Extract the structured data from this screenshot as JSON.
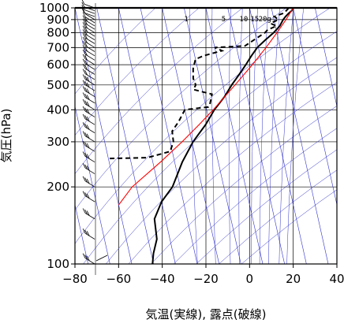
{
  "chart_data": {
    "type": "line",
    "subtype": "skew-t log-p sounding",
    "xlabel": "気温(実線), 露点(破線)",
    "ylabel": "気圧(hPa)",
    "xlim": [
      -80,
      40
    ],
    "ylim": [
      1000,
      100
    ],
    "y_scale": "log",
    "x_ticks": [
      {
        "value": -80,
        "label": "−80"
      },
      {
        "value": -60,
        "label": "−60"
      },
      {
        "value": -40,
        "label": "−40"
      },
      {
        "value": -20,
        "label": "−20"
      },
      {
        "value": 0,
        "label": "0"
      },
      {
        "value": 20,
        "label": "20"
      },
      {
        "value": 40,
        "label": "40"
      }
    ],
    "y_ticks": [
      {
        "value": 100,
        "label": "100"
      },
      {
        "value": 200,
        "label": "200"
      },
      {
        "value": 300,
        "label": "300"
      },
      {
        "value": 400,
        "label": "400"
      },
      {
        "value": 500,
        "label": "500"
      },
      {
        "value": 600,
        "label": "600"
      },
      {
        "value": 700,
        "label": "700"
      },
      {
        "value": 800,
        "label": "800"
      },
      {
        "value": 900,
        "label": "900"
      },
      {
        "value": 1000,
        "label": "1000"
      }
    ],
    "mixing_ratio_labels": [
      {
        "value": 1,
        "label": "1"
      },
      {
        "value": 5,
        "label": "5"
      },
      {
        "value": 10,
        "label": "10"
      },
      {
        "value": 15,
        "label": "15"
      },
      {
        "value": 20,
        "label": "20g"
      }
    ],
    "colors": {
      "temperature": "#000000",
      "dewpoint": "#000000",
      "parcel": "#ff0000",
      "background_lines": "#3333cc",
      "grid": "#000000"
    },
    "series": [
      {
        "key": "temperature",
        "style": "solid",
        "points": [
          {
            "p": 1000,
            "t": 20.0
          },
          {
            "p": 975,
            "t": 19.0
          },
          {
            "p": 950,
            "t": 17.2
          },
          {
            "p": 925,
            "t": 15.6
          },
          {
            "p": 900,
            "t": 14.2
          },
          {
            "p": 850,
            "t": 12.0
          },
          {
            "p": 800,
            "t": 8.5
          },
          {
            "p": 750,
            "t": 4.0
          },
          {
            "p": 700,
            "t": -0.5
          },
          {
            "p": 650,
            "t": -4.0
          },
          {
            "p": 600,
            "t": -7.5
          },
          {
            "p": 550,
            "t": -11.5
          },
          {
            "p": 500,
            "t": -16.0
          },
          {
            "p": 450,
            "t": -20.5
          },
          {
            "p": 400,
            "t": -26.5
          },
          {
            "p": 350,
            "t": -32.0
          },
          {
            "p": 300,
            "t": -39.5
          },
          {
            "p": 250,
            "t": -46.5
          },
          {
            "p": 200,
            "t": -53.5
          },
          {
            "p": 175,
            "t": -60.0
          },
          {
            "p": 150,
            "t": -65.0
          },
          {
            "p": 125,
            "t": -66.0
          },
          {
            "p": 110,
            "t": -69.0
          },
          {
            "p": 100,
            "t": -70.5
          }
        ]
      },
      {
        "key": "dewpoint",
        "style": "dashed",
        "points": [
          {
            "p": 1000,
            "t": 18.0
          },
          {
            "p": 975,
            "t": 16.5
          },
          {
            "p": 950,
            "t": 14.5
          },
          {
            "p": 925,
            "t": 10.5
          },
          {
            "p": 900,
            "t": 12.0
          },
          {
            "p": 870,
            "t": 8.0
          },
          {
            "p": 850,
            "t": 10.5
          },
          {
            "p": 820,
            "t": 6.0
          },
          {
            "p": 800,
            "t": 4.5
          },
          {
            "p": 760,
            "t": 0.0
          },
          {
            "p": 710,
            "t": -6.0
          },
          {
            "p": 700,
            "t": -20.0
          },
          {
            "p": 680,
            "t": -17.0
          },
          {
            "p": 650,
            "t": -26.0
          },
          {
            "p": 630,
            "t": -30.0
          },
          {
            "p": 580,
            "t": -32.0
          },
          {
            "p": 530,
            "t": -33.0
          },
          {
            "p": 500,
            "t": -32.5
          },
          {
            "p": 480,
            "t": -34.0
          },
          {
            "p": 460,
            "t": -26.0
          },
          {
            "p": 420,
            "t": -28.0
          },
          {
            "p": 410,
            "t": -29.0
          },
          {
            "p": 400,
            "t": -40.0
          },
          {
            "p": 360,
            "t": -44.0
          },
          {
            "p": 330,
            "t": -48.0
          },
          {
            "p": 300,
            "t": -48.5
          },
          {
            "p": 275,
            "t": -51.0
          },
          {
            "p": 260,
            "t": -62.0
          },
          {
            "p": 258,
            "t": -80.0
          }
        ]
      },
      {
        "key": "parcel",
        "style": "solid",
        "points": [
          {
            "p": 1000,
            "t": 20.0
          },
          {
            "p": 900,
            "t": 15.5
          },
          {
            "p": 800,
            "t": 10.0
          },
          {
            "p": 700,
            "t": 3.5
          },
          {
            "p": 600,
            "t": -4.5
          },
          {
            "p": 500,
            "t": -14.5
          },
          {
            "p": 400,
            "t": -27.0
          },
          {
            "p": 350,
            "t": -35.0
          },
          {
            "p": 300,
            "t": -44.5
          },
          {
            "p": 250,
            "t": -56.5
          },
          {
            "p": 200,
            "t": -72.0
          },
          {
            "p": 170,
            "t": -80.0
          }
        ]
      }
    ],
    "wind_barb_levels": [
      1000,
      975,
      950,
      925,
      900,
      875,
      850,
      825,
      800,
      775,
      750,
      725,
      700,
      675,
      650,
      625,
      600,
      575,
      550,
      525,
      500,
      475,
      450,
      425,
      400,
      375,
      350,
      325,
      300,
      275,
      250,
      225,
      200,
      175,
      150,
      125,
      100
    ]
  }
}
